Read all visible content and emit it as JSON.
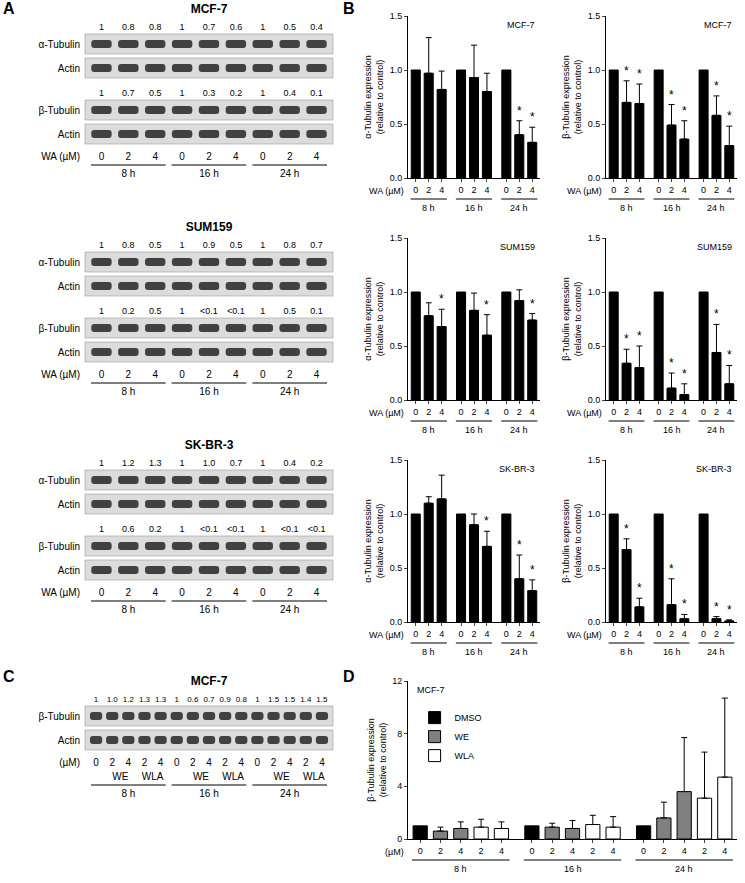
{
  "panel_labels": [
    "A",
    "B",
    "C",
    "D"
  ],
  "blots_A": [
    {
      "cell_line": "MCF-7",
      "rows": [
        {
          "protein": "α-Tubulin",
          "quant": [
            "1",
            "0.8",
            "0.8",
            "1",
            "0.7",
            "0.6",
            "1",
            "0.5",
            "0.4"
          ]
        },
        {
          "protein": "Actin"
        },
        {
          "protein": "β-Tubulin",
          "quant": [
            "1",
            "0.7",
            "0.5",
            "1",
            "0.3",
            "0.2",
            "1",
            "0.4",
            "0.1"
          ]
        },
        {
          "protein": "Actin"
        }
      ],
      "treatment": "WA (µM)",
      "groups": [
        {
          "time": "8 h",
          "doses": [
            "0",
            "2",
            "4"
          ]
        },
        {
          "time": "16 h",
          "doses": [
            "0",
            "2",
            "4"
          ]
        },
        {
          "time": "24 h",
          "doses": [
            "0",
            "2",
            "4"
          ]
        }
      ]
    },
    {
      "cell_line": "SUM159",
      "rows": [
        {
          "protein": "α-Tubulin",
          "quant": [
            "1",
            "0.8",
            "0.5",
            "1",
            "0.9",
            "0.5",
            "1",
            "0.8",
            "0.7"
          ]
        },
        {
          "protein": "Actin"
        },
        {
          "protein": "β-Tubulin",
          "quant": [
            "1",
            "0.2",
            "0.5",
            "1",
            "<0.1",
            "<0.1",
            "1",
            "0.5",
            "0.1"
          ]
        },
        {
          "protein": "Actin"
        }
      ],
      "treatment": "WA (µM)",
      "groups": [
        {
          "time": "8 h",
          "doses": [
            "0",
            "2",
            "4"
          ]
        },
        {
          "time": "16 h",
          "doses": [
            "0",
            "2",
            "4"
          ]
        },
        {
          "time": "24 h",
          "doses": [
            "0",
            "2",
            "4"
          ]
        }
      ]
    },
    {
      "cell_line": "SK-BR-3",
      "rows": [
        {
          "protein": "α-Tubulin",
          "quant": [
            "1",
            "1.2",
            "1.3",
            "1",
            "1.0",
            "0.7",
            "1",
            "0.4",
            "0.2"
          ]
        },
        {
          "protein": "Actin"
        },
        {
          "protein": "β-Tubulin",
          "quant": [
            "1",
            "0.6",
            "0.2",
            "1",
            "<0.1",
            "<0.1",
            "1",
            "<0.1",
            "<0.1"
          ]
        },
        {
          "protein": "Actin"
        }
      ],
      "treatment": "WA (µM)",
      "groups": [
        {
          "time": "8 h",
          "doses": [
            "0",
            "2",
            "4"
          ]
        },
        {
          "time": "16 h",
          "doses": [
            "0",
            "2",
            "4"
          ]
        },
        {
          "time": "24 h",
          "doses": [
            "0",
            "2",
            "4"
          ]
        }
      ]
    }
  ],
  "blot_C": {
    "cell_line": "MCF-7",
    "rows": [
      {
        "protein": "β-Tubulin",
        "quant": [
          "1",
          "1.0",
          "1.2",
          "1.3",
          "1.3",
          "1",
          "0.6",
          "0.7",
          "0.9",
          "0.8",
          "1",
          "1.5",
          "1.5",
          "1.4",
          "1.5"
        ]
      },
      {
        "protein": "Actin"
      }
    ],
    "treatment": "(µM)",
    "groups": [
      {
        "time": "8 h",
        "sets": [
          {
            "doses": [
              "0"
            ]
          },
          {
            "agent": "WE",
            "doses": [
              "2",
              "4"
            ]
          },
          {
            "agent": "WLA",
            "doses": [
              "2",
              "4"
            ]
          }
        ]
      },
      {
        "time": "16 h",
        "sets": [
          {
            "doses": [
              "0"
            ]
          },
          {
            "agent": "WE",
            "doses": [
              "2",
              "4"
            ]
          },
          {
            "agent": "WLA",
            "doses": [
              "2",
              "4"
            ]
          }
        ]
      },
      {
        "time": "24 h",
        "sets": [
          {
            "doses": [
              "0"
            ]
          },
          {
            "agent": "WE",
            "doses": [
              "2",
              "4"
            ]
          },
          {
            "agent": "WLA",
            "doses": [
              "2",
              "4"
            ]
          }
        ]
      }
    ]
  },
  "chart_data": [
    {
      "type": "bar",
      "title": "MCF-7",
      "y_label": [
        "α-Tubulin expression",
        "(relative to control)"
      ],
      "x_label": "WA (µM)",
      "groups": [
        {
          "label": "8 h",
          "categories": [
            "0",
            "2",
            "4"
          ]
        },
        {
          "label": "16 h",
          "categories": [
            "0",
            "2",
            "4"
          ]
        },
        {
          "label": "24 h",
          "categories": [
            "0",
            "2",
            "4"
          ]
        }
      ],
      "values": [
        1,
        0.97,
        0.82,
        1,
        0.93,
        0.8,
        1,
        0.4,
        0.33
      ],
      "errors": [
        null,
        0.33,
        0.17,
        null,
        0.3,
        0.17,
        null,
        0.13,
        0.14
      ],
      "significance": [
        false,
        false,
        false,
        false,
        false,
        false,
        false,
        true,
        true
      ],
      "significance_label": "*",
      "color": "#000000",
      "ylim": [
        0,
        1.5
      ],
      "yticks": [
        {
          "value": 0,
          "label": "0.0"
        },
        {
          "value": 0.5,
          "label": "0.5"
        },
        {
          "value": 1,
          "label": "1.0"
        },
        {
          "value": 1.5,
          "label": "1.5"
        }
      ],
      "grid": false
    },
    {
      "type": "bar",
      "title": "MCF-7",
      "y_label": [
        "β-Tubulin expression",
        "(relative to control)"
      ],
      "x_label": "WA (µM)",
      "groups": [
        {
          "label": "8 h",
          "categories": [
            "0",
            "2",
            "4"
          ]
        },
        {
          "label": "16 h",
          "categories": [
            "0",
            "2",
            "4"
          ]
        },
        {
          "label": "24 h",
          "categories": [
            "0",
            "2",
            "4"
          ]
        }
      ],
      "values": [
        1,
        0.7,
        0.69,
        1,
        0.49,
        0.36,
        1,
        0.58,
        0.3
      ],
      "errors": [
        null,
        0.2,
        0.18,
        null,
        0.19,
        0.17,
        null,
        0.18,
        0.18
      ],
      "significance": [
        false,
        true,
        true,
        false,
        true,
        true,
        false,
        true,
        true
      ],
      "significance_label": "*",
      "color": "#000000",
      "ylim": [
        0,
        1.5
      ],
      "yticks": [
        {
          "value": 0,
          "label": "0.0"
        },
        {
          "value": 0.5,
          "label": "0.5"
        },
        {
          "value": 1,
          "label": "1.0"
        },
        {
          "value": 1.5,
          "label": "1.5"
        }
      ],
      "grid": false
    },
    {
      "type": "bar",
      "title": "SUM159",
      "y_label": [
        "α-Tubulin expression",
        "(relative to control)"
      ],
      "x_label": "WA (µM)",
      "groups": [
        {
          "label": "8 h",
          "categories": [
            "0",
            "2",
            "4"
          ]
        },
        {
          "label": "16 h",
          "categories": [
            "0",
            "2",
            "4"
          ]
        },
        {
          "label": "24 h",
          "categories": [
            "0",
            "2",
            "4"
          ]
        }
      ],
      "values": [
        1,
        0.78,
        0.68,
        1,
        0.83,
        0.6,
        1,
        0.92,
        0.74
      ],
      "errors": [
        null,
        0.12,
        0.16,
        null,
        0.16,
        0.19,
        null,
        0.1,
        0.06
      ],
      "significance": [
        false,
        false,
        true,
        false,
        false,
        true,
        false,
        false,
        true
      ],
      "significance_label": "*",
      "color": "#000000",
      "ylim": [
        0,
        1.5
      ],
      "yticks": [
        {
          "value": 0,
          "label": "0.0"
        },
        {
          "value": 0.5,
          "label": "0.5"
        },
        {
          "value": 1,
          "label": "1.0"
        },
        {
          "value": 1.5,
          "label": "1.5"
        }
      ],
      "grid": false
    },
    {
      "type": "bar",
      "title": "SUM159",
      "y_label": [
        "β-Tubulin expression",
        "(relative to control)"
      ],
      "x_label": "WA (µM)",
      "groups": [
        {
          "label": "8 h",
          "categories": [
            "0",
            "2",
            "4"
          ]
        },
        {
          "label": "16 h",
          "categories": [
            "0",
            "2",
            "4"
          ]
        },
        {
          "label": "24 h",
          "categories": [
            "0",
            "2",
            "4"
          ]
        }
      ],
      "values": [
        1,
        0.34,
        0.3,
        1,
        0.11,
        0.05,
        1,
        0.44,
        0.15
      ],
      "errors": [
        null,
        0.13,
        0.2,
        null,
        0.14,
        0.1,
        null,
        0.26,
        0.17
      ],
      "significance": [
        false,
        true,
        true,
        false,
        true,
        true,
        false,
        true,
        true
      ],
      "significance_label": "*",
      "color": "#000000",
      "ylim": [
        0,
        1.5
      ],
      "yticks": [
        {
          "value": 0,
          "label": "0.0"
        },
        {
          "value": 0.5,
          "label": "0.5"
        },
        {
          "value": 1,
          "label": "1.0"
        },
        {
          "value": 1.5,
          "label": "1.5"
        }
      ],
      "grid": false
    },
    {
      "type": "bar",
      "title": "SK-BR-3",
      "y_label": [
        "α-Tubulin expression",
        "(relative to control)"
      ],
      "x_label": "WA (µM)",
      "groups": [
        {
          "label": "8 h",
          "categories": [
            "0",
            "2",
            "4"
          ]
        },
        {
          "label": "16 h",
          "categories": [
            "0",
            "2",
            "4"
          ]
        },
        {
          "label": "24 h",
          "categories": [
            "0",
            "2",
            "4"
          ]
        }
      ],
      "values": [
        1,
        1.1,
        1.14,
        1,
        0.9,
        0.7,
        1,
        0.4,
        0.29
      ],
      "errors": [
        null,
        0.06,
        0.22,
        null,
        0.1,
        0.14,
        null,
        0.22,
        0.1
      ],
      "significance": [
        false,
        false,
        false,
        false,
        false,
        true,
        false,
        true,
        true
      ],
      "significance_label": "*",
      "color": "#000000",
      "ylim": [
        0,
        1.5
      ],
      "yticks": [
        {
          "value": 0,
          "label": "0.0"
        },
        {
          "value": 0.5,
          "label": "0.5"
        },
        {
          "value": 1,
          "label": "1.0"
        },
        {
          "value": 1.5,
          "label": "1.5"
        }
      ],
      "grid": false
    },
    {
      "type": "bar",
      "title": "SK-BR-3",
      "y_label": [
        "β-Tubulin expression",
        "(relative to control)"
      ],
      "x_label": "WA (µM)",
      "groups": [
        {
          "label": "8 h",
          "categories": [
            "0",
            "2",
            "4"
          ]
        },
        {
          "label": "16 h",
          "categories": [
            "0",
            "2",
            "4"
          ]
        },
        {
          "label": "24 h",
          "categories": [
            "0",
            "2",
            "4"
          ]
        }
      ],
      "values": [
        1,
        0.67,
        0.14,
        1,
        0.16,
        0.03,
        1,
        0.03,
        0.01
      ],
      "errors": [
        null,
        0.1,
        0.08,
        null,
        0.24,
        0.04,
        null,
        0.02,
        0.01
      ],
      "significance": [
        false,
        true,
        true,
        false,
        true,
        true,
        false,
        true,
        true
      ],
      "significance_label": "*",
      "color": "#000000",
      "ylim": [
        0,
        1.5
      ],
      "yticks": [
        {
          "value": 0,
          "label": "0.0"
        },
        {
          "value": 0.5,
          "label": "0.5"
        },
        {
          "value": 1,
          "label": "1.0"
        },
        {
          "value": 1.5,
          "label": "1.5"
        }
      ],
      "grid": false
    },
    {
      "type": "bar",
      "title": "MCF-7",
      "y_label": [
        "β-Tubulin expression",
        "(relative to control)"
      ],
      "x_label": "(µM)",
      "groups": [
        {
          "label": "8 h",
          "categories": [
            "0",
            "2",
            "4",
            "2",
            "4"
          ]
        },
        {
          "label": "16 h",
          "categories": [
            "0",
            "2",
            "4",
            "2",
            "4"
          ]
        },
        {
          "label": "24 h",
          "categories": [
            "0",
            "2",
            "4",
            "2",
            "4"
          ]
        }
      ],
      "series": [
        {
          "name": "DMSO",
          "color": "#000000",
          "values": [
            1,
            null,
            null,
            null,
            null,
            1,
            null,
            null,
            null,
            null,
            1,
            null,
            null,
            null,
            null
          ],
          "errors": [
            null,
            null,
            null,
            null,
            null,
            null,
            null,
            null,
            null,
            null,
            null,
            null,
            null,
            null,
            null
          ]
        },
        {
          "name": "WE",
          "color": "#808080",
          "values": [
            null,
            0.6,
            0.8,
            null,
            null,
            null,
            0.9,
            0.8,
            null,
            null,
            null,
            1.6,
            3.6,
            null,
            null
          ],
          "errors": [
            null,
            0.3,
            0.5,
            null,
            null,
            null,
            0.3,
            0.6,
            null,
            null,
            null,
            1.2,
            4.1,
            null,
            null
          ]
        },
        {
          "name": "WLA",
          "color": "#ffffff",
          "values": [
            null,
            null,
            null,
            0.9,
            0.8,
            null,
            null,
            null,
            1.1,
            0.9,
            null,
            null,
            null,
            3.1,
            4.7
          ],
          "errors": [
            null,
            null,
            null,
            0.6,
            0.5,
            null,
            null,
            null,
            0.7,
            0.8,
            null,
            null,
            null,
            3.5,
            6.0
          ]
        }
      ],
      "ylim": [
        0,
        12
      ],
      "yticks": [
        0,
        4,
        8,
        12
      ],
      "legend": "top-left",
      "grid": false
    }
  ]
}
